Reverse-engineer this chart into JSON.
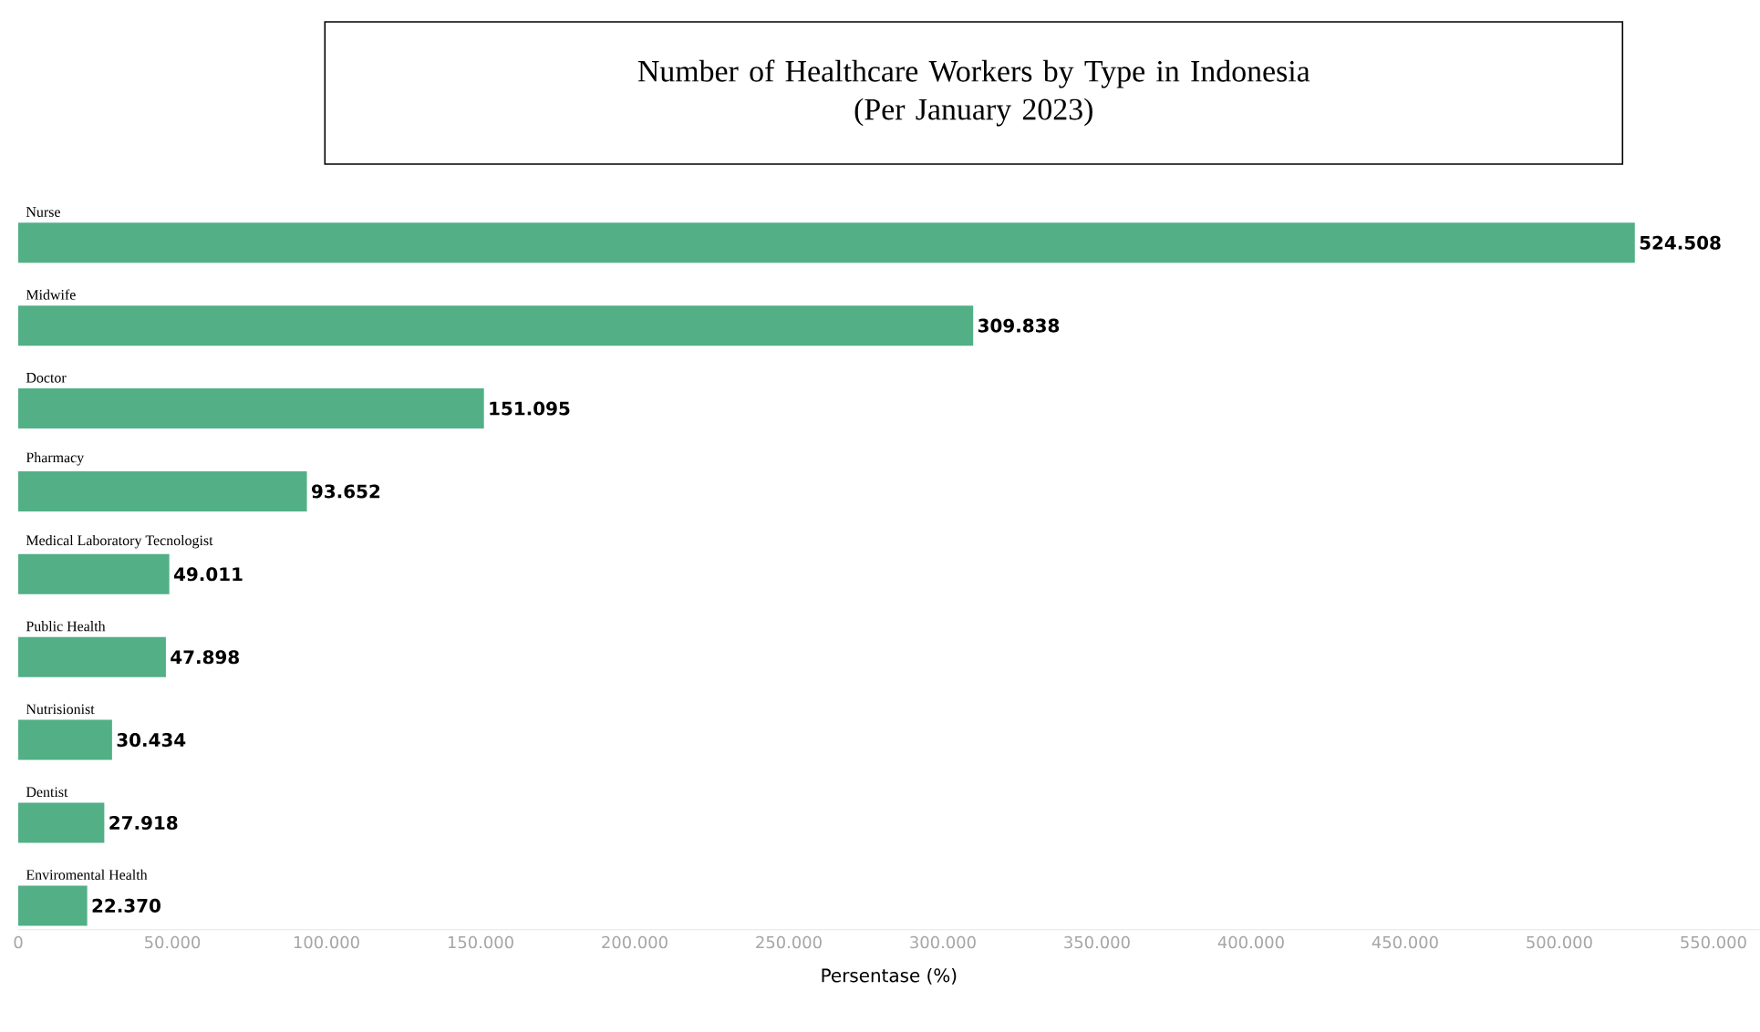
{
  "chart_data": {
    "type": "bar",
    "orientation": "horizontal",
    "title": "Number of Healthcare Workers by Type in Indonesia",
    "subtitle": "(Per January 2023)",
    "xlabel": "Persentase (%)",
    "categories": [
      "Nurse",
      "Midwife",
      "Doctor",
      "Pharmacy",
      "Medical Laboratory Tecnologist",
      "Public Health",
      "Nutrisionist",
      "Dentist",
      "Enviromental Health"
    ],
    "values": [
      524508,
      309838,
      151095,
      93652,
      49011,
      47898,
      30434,
      27918,
      22370
    ],
    "value_labels": [
      "524.508",
      "309.838",
      "151.095",
      "93.652",
      "49.011",
      "47.898",
      "30.434",
      "27.918",
      "22.370"
    ],
    "color": "#52af86",
    "xlim": [
      0,
      565000
    ],
    "xticks": [
      {
        "value": 0,
        "label": "0"
      },
      {
        "value": 50000,
        "label": "50.000"
      },
      {
        "value": 100000,
        "label": "100.000"
      },
      {
        "value": 150000,
        "label": "150.000"
      },
      {
        "value": 200000,
        "label": "200.000"
      },
      {
        "value": 250000,
        "label": "250.000"
      },
      {
        "value": 300000,
        "label": "300.000"
      },
      {
        "value": 350000,
        "label": "350.000"
      },
      {
        "value": 400000,
        "label": "400.000"
      },
      {
        "value": 450000,
        "label": "450.000"
      },
      {
        "value": 500000,
        "label": "500.000"
      },
      {
        "value": 550000,
        "label": "550.000"
      }
    ]
  }
}
